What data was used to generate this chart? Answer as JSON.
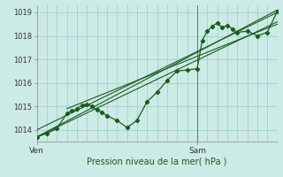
{
  "bg_color": "#cceae6",
  "grid_color": "#aad4d0",
  "line_color": "#1a5c1a",
  "xlabel": "Pression niveau de la mer( hPa )",
  "ylim": [
    1013.5,
    1019.3
  ],
  "xlim": [
    0,
    48
  ],
  "xtick_positions": [
    0,
    32
  ],
  "xtick_labels": [
    "Ven",
    "Sam"
  ],
  "ytick_positions": [
    1014,
    1015,
    1016,
    1017,
    1018,
    1019
  ],
  "ytick_labels": [
    "1014",
    "1015",
    "1016",
    "1017",
    "1018",
    "1019"
  ],
  "minor_xtick_positions": [
    0,
    2,
    4,
    6,
    8,
    10,
    12,
    14,
    16,
    18,
    20,
    22,
    24,
    26,
    28,
    30,
    32,
    34,
    36,
    38,
    40,
    42,
    44,
    46,
    48
  ],
  "sam_x": 32,
  "trend_lines": [
    {
      "x": [
        0,
        48
      ],
      "y": [
        1013.7,
        1019.1
      ]
    },
    {
      "x": [
        0,
        48
      ],
      "y": [
        1013.7,
        1018.6
      ]
    },
    {
      "x": [
        0,
        48
      ],
      "y": [
        1014.0,
        1019.0
      ]
    },
    {
      "x": [
        6,
        48
      ],
      "y": [
        1014.9,
        1018.5
      ]
    }
  ],
  "data_x": [
    0,
    2,
    4,
    6,
    7,
    8,
    9,
    10,
    11,
    12,
    13,
    14,
    16,
    18,
    20,
    22,
    24,
    26,
    28,
    30,
    32,
    33,
    34,
    35,
    36,
    37,
    38,
    39,
    40,
    42,
    44,
    46,
    48
  ],
  "data_y": [
    1013.7,
    1013.85,
    1014.05,
    1014.7,
    1014.8,
    1014.9,
    1015.05,
    1015.1,
    1015.0,
    1014.85,
    1014.75,
    1014.6,
    1014.4,
    1014.1,
    1014.4,
    1015.2,
    1015.6,
    1016.1,
    1016.5,
    1016.55,
    1016.6,
    1017.8,
    1018.2,
    1018.4,
    1018.55,
    1018.35,
    1018.45,
    1018.3,
    1018.15,
    1018.2,
    1018.0,
    1018.15,
    1019.05
  ]
}
